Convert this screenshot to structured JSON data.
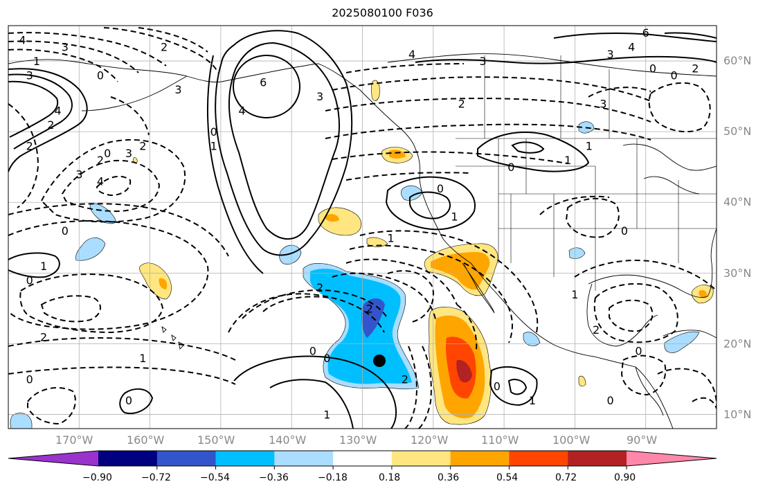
{
  "title": "2025080100 F036",
  "lon_labels": [
    "170°W",
    "160°W",
    "150°W",
    "140°W",
    "130°W",
    "120°W",
    "110°W",
    "100°W",
    "90°W"
  ],
  "lat_labels": [
    "60°N",
    "50°N",
    "40°N",
    "30°N",
    "20°N",
    "10°N"
  ],
  "colorbar": {
    "colors": [
      "#9933cc",
      "#000080",
      "#3355cc",
      "#00bfff",
      "#aaddff",
      "#ffffff",
      "#ffe680",
      "#ffa500",
      "#ff4500",
      "#b22222",
      "#ff88aa"
    ],
    "ticks": [
      "−0.90",
      "−0.72",
      "−0.54",
      "−0.36",
      "−0.18",
      "0.18",
      "0.36",
      "0.54",
      "0.72",
      "0.90"
    ]
  },
  "contour_labels": [
    {
      "text": "4",
      "lon": -178,
      "lat": 63
    },
    {
      "text": "3",
      "lon": -172,
      "lat": 62
    },
    {
      "text": "2",
      "lon": -158,
      "lat": 62
    },
    {
      "text": "1",
      "lon": -176,
      "lat": 60
    },
    {
      "text": "3",
      "lon": -177,
      "lat": 58
    },
    {
      "text": "0",
      "lon": -167,
      "lat": 58
    },
    {
      "text": "3",
      "lon": -156,
      "lat": 56
    },
    {
      "text": "4",
      "lon": -173,
      "lat": 53
    },
    {
      "text": "2",
      "lon": -174,
      "lat": 51
    },
    {
      "text": "2",
      "lon": -177,
      "lat": 48
    },
    {
      "text": "2",
      "lon": -161,
      "lat": 48
    },
    {
      "text": "3",
      "lon": -163,
      "lat": 47
    },
    {
      "text": "0",
      "lon": -166,
      "lat": 47
    },
    {
      "text": "2",
      "lon": -167,
      "lat": 46
    },
    {
      "text": "4",
      "lon": -167,
      "lat": 43
    },
    {
      "text": "3",
      "lon": -170,
      "lat": 44
    },
    {
      "text": "0",
      "lon": -172,
      "lat": 36
    },
    {
      "text": "1",
      "lon": -175,
      "lat": 31
    },
    {
      "text": "0",
      "lon": -177,
      "lat": 29
    },
    {
      "text": "2",
      "lon": -175,
      "lat": 21
    },
    {
      "text": "1",
      "lon": -161,
      "lat": 18
    },
    {
      "text": "0",
      "lon": -177,
      "lat": 15
    },
    {
      "text": "0",
      "lon": -163,
      "lat": 12
    },
    {
      "text": "6",
      "lon": -144,
      "lat": 57
    },
    {
      "text": "4",
      "lon": -147,
      "lat": 53
    },
    {
      "text": "3",
      "lon": -136,
      "lat": 55
    },
    {
      "text": "0",
      "lon": -151,
      "lat": 50
    },
    {
      "text": "1",
      "lon": -151,
      "lat": 48
    },
    {
      "text": "4",
      "lon": -123,
      "lat": 61
    },
    {
      "text": "3",
      "lon": -113,
      "lat": 60
    },
    {
      "text": "2",
      "lon": -116,
      "lat": 54
    },
    {
      "text": "0",
      "lon": -119,
      "lat": 42
    },
    {
      "text": "0",
      "lon": -109,
      "lat": 45
    },
    {
      "text": "1",
      "lon": -101,
      "lat": 46
    },
    {
      "text": "1",
      "lon": -117,
      "lat": 38
    },
    {
      "text": "1",
      "lon": -126,
      "lat": 35
    },
    {
      "text": "2",
      "lon": -136,
      "lat": 28
    },
    {
      "text": "2",
      "lon": -129,
      "lat": 25
    },
    {
      "text": "0",
      "lon": -137,
      "lat": 19
    },
    {
      "text": "0",
      "lon": -135,
      "lat": 18
    },
    {
      "text": "1",
      "lon": -135,
      "lat": 10
    },
    {
      "text": "2",
      "lon": -124,
      "lat": 15
    },
    {
      "text": "0",
      "lon": -111,
      "lat": 14
    },
    {
      "text": "1",
      "lon": -106,
      "lat": 12
    },
    {
      "text": "6",
      "lon": -90,
      "lat": 64
    },
    {
      "text": "4",
      "lon": -92,
      "lat": 62
    },
    {
      "text": "3",
      "lon": -95,
      "lat": 61
    },
    {
      "text": "2",
      "lon": -83,
      "lat": 59
    },
    {
      "text": "0",
      "lon": -89,
      "lat": 59
    },
    {
      "text": "0",
      "lon": -86,
      "lat": 58
    },
    {
      "text": "3",
      "lon": -96,
      "lat": 54
    },
    {
      "text": "1",
      "lon": -98,
      "lat": 48
    },
    {
      "text": "0",
      "lon": -93,
      "lat": 36
    },
    {
      "text": "2",
      "lon": -97,
      "lat": 22
    },
    {
      "text": "0",
      "lon": -91,
      "lat": 19
    },
    {
      "text": "0",
      "lon": -95,
      "lat": 12
    },
    {
      "text": "1",
      "lon": -100,
      "lat": 27
    }
  ],
  "markers": [
    {
      "name": "storm-center",
      "lon": -127,
      "lat": 17.5
    }
  ]
}
